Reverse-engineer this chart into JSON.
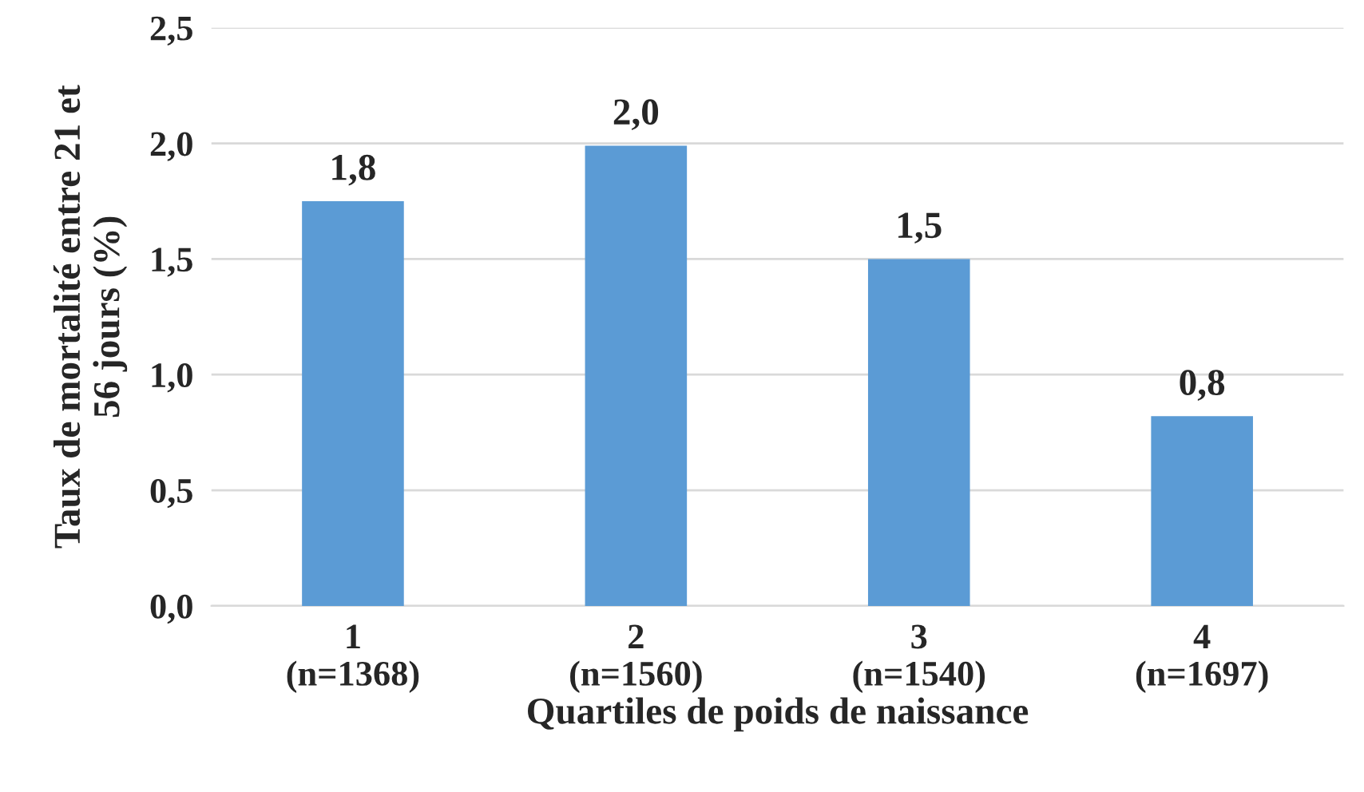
{
  "chart_data": {
    "type": "bar",
    "xlabel": "Quartiles de poids de naissance",
    "ylabel": "Taux de mortalité entre 21 et\n56 jours (%)",
    "categories": [
      "1\n(n=1368)",
      "2\n(n=1560)",
      "3\n(n=1540)",
      "4\n(n=1697)"
    ],
    "values": [
      1.75,
      1.99,
      1.5,
      0.82
    ],
    "value_labels": [
      "1,8",
      "2,0",
      "1,5",
      "0,8"
    ],
    "color": "#5b9bd5",
    "ylim": [
      0,
      2.5
    ],
    "yticks": [
      {
        "value": 0,
        "label": "0,0"
      },
      {
        "value": 0.5,
        "label": "0,5"
      },
      {
        "value": 1,
        "label": "1,0"
      },
      {
        "value": 1.5,
        "label": "1,5"
      },
      {
        "value": 2,
        "label": "2,0"
      },
      {
        "value": 2.5,
        "label": "2,5"
      }
    ],
    "grid": "y",
    "legend": false
  }
}
